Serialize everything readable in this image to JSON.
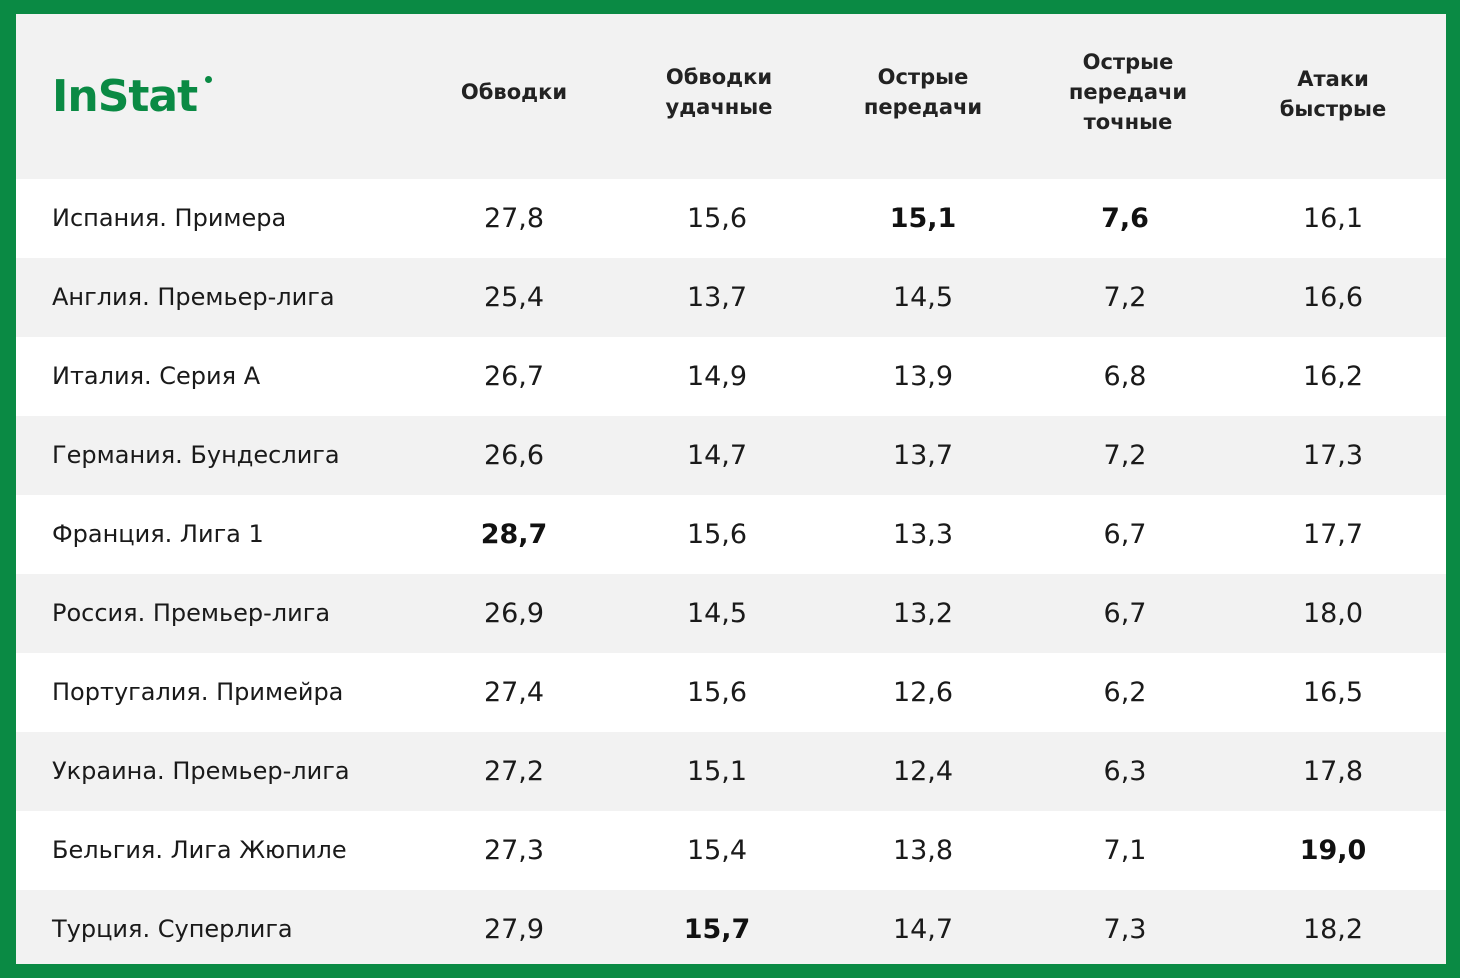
{
  "brand": {
    "name": "InStat",
    "color": "#0a8a44"
  },
  "colors": {
    "frame": "#0a8a44",
    "row_alt": "#f2f2f2",
    "row_plain": "#ffffff",
    "text": "#1a1a1a"
  },
  "columns": [
    "Обводки",
    "Обводки\nудачные",
    "Острые\nпередачи",
    "Острые\nпередачи\nточные",
    "Атаки\nбыстрые"
  ],
  "chart_data": {
    "type": "table",
    "columns": [
      "Обводки",
      "Обводки удачные",
      "Острые передачи",
      "Острые передачи точные",
      "Атаки быстрые"
    ],
    "rows": [
      {
        "league": "Испания. Примера",
        "values": [
          "27,8",
          "15,6",
          "15,1",
          "7,6",
          "16,1"
        ],
        "bold": [
          false,
          false,
          true,
          true,
          false
        ]
      },
      {
        "league": "Англия. Премьер-лига",
        "values": [
          "25,4",
          "13,7",
          "14,5",
          "7,2",
          "16,6"
        ],
        "bold": [
          false,
          false,
          false,
          false,
          false
        ]
      },
      {
        "league": "Италия. Серия А",
        "values": [
          "26,7",
          "14,9",
          "13,9",
          "6,8",
          "16,2"
        ],
        "bold": [
          false,
          false,
          false,
          false,
          false
        ]
      },
      {
        "league": "Германия. Бундеслига",
        "values": [
          "26,6",
          "14,7",
          "13,7",
          "7,2",
          "17,3"
        ],
        "bold": [
          false,
          false,
          false,
          false,
          false
        ]
      },
      {
        "league": "Франция. Лига 1",
        "values": [
          "28,7",
          "15,6",
          "13,3",
          "6,7",
          "17,7"
        ],
        "bold": [
          true,
          false,
          false,
          false,
          false
        ]
      },
      {
        "league": "Россия. Премьер-лига",
        "values": [
          "26,9",
          "14,5",
          "13,2",
          "6,7",
          "18,0"
        ],
        "bold": [
          false,
          false,
          false,
          false,
          false
        ]
      },
      {
        "league": "Португалия. Примейра",
        "values": [
          "27,4",
          "15,6",
          "12,6",
          "6,2",
          "16,5"
        ],
        "bold": [
          false,
          false,
          false,
          false,
          false
        ]
      },
      {
        "league": "Украина. Премьер-лига",
        "values": [
          "27,2",
          "15,1",
          "12,4",
          "6,3",
          "17,8"
        ],
        "bold": [
          false,
          false,
          false,
          false,
          false
        ]
      },
      {
        "league": "Бельгия. Лига Жюпиле",
        "values": [
          "27,3",
          "15,4",
          "13,8",
          "7,1",
          "19,0"
        ],
        "bold": [
          false,
          false,
          false,
          false,
          true
        ]
      },
      {
        "league": "Турция. Суперлига",
        "values": [
          "27,9",
          "15,7",
          "14,7",
          "7,3",
          "18,2"
        ],
        "bold": [
          false,
          true,
          false,
          false,
          false
        ]
      }
    ]
  }
}
